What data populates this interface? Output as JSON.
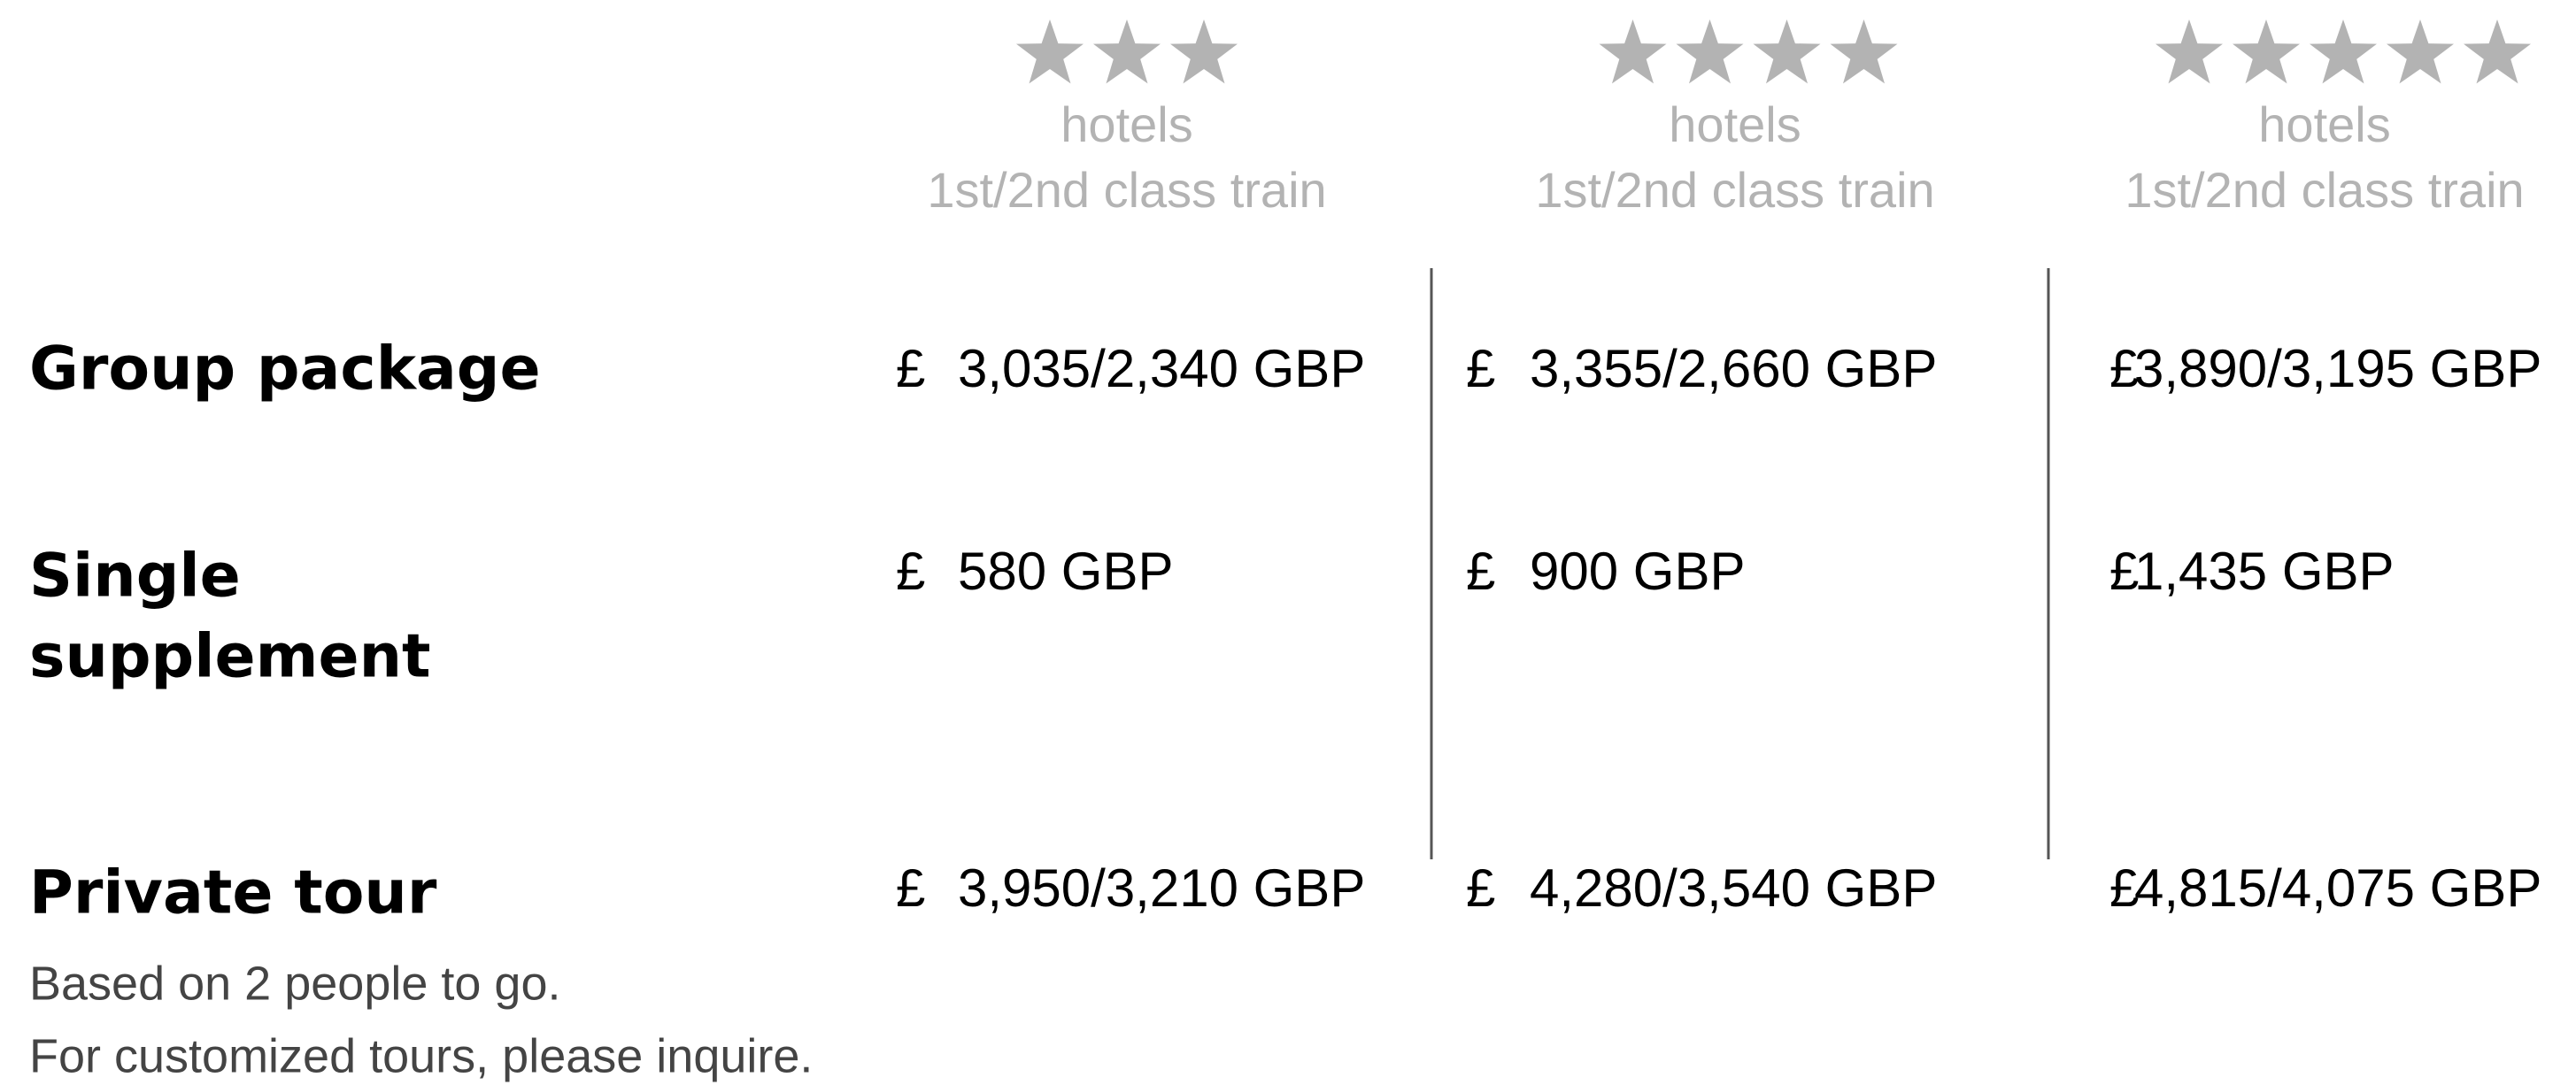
{
  "columns": [
    {
      "stars": 3,
      "hotels": "hotels",
      "train": "1st/2nd class train"
    },
    {
      "stars": 4,
      "hotels": "hotels",
      "train": "1st/2nd class train"
    },
    {
      "stars": 5,
      "hotels": "hotels",
      "train": "1st/2nd class train"
    }
  ],
  "rows": [
    {
      "label": [
        "Group package"
      ],
      "cells": [
        {
          "currency": "£",
          "amount": "3,035/2,340 GBP"
        },
        {
          "currency": "£",
          "amount": "3,355/2,660 GBP"
        },
        {
          "currency": "£",
          "amount": "3,890/3,195 GBP"
        }
      ]
    },
    {
      "label": [
        "Single",
        "supplement"
      ],
      "cells": [
        {
          "currency": "£",
          "amount": "580 GBP"
        },
        {
          "currency": "£",
          "amount": "900 GBP"
        },
        {
          "currency": "£",
          "amount": "1,435 GBP"
        }
      ]
    },
    {
      "label": [
        "Private tour"
      ],
      "cells": [
        {
          "currency": "£",
          "amount": "3,950/3,210 GBP"
        },
        {
          "currency": "£",
          "amount": "4,280/3,540 GBP"
        },
        {
          "currency": "£",
          "amount": "4,815/4,075 GBP"
        }
      ]
    }
  ],
  "notes": [
    "Based on 2 people to go.",
    "For customized tours, please inquire."
  ]
}
